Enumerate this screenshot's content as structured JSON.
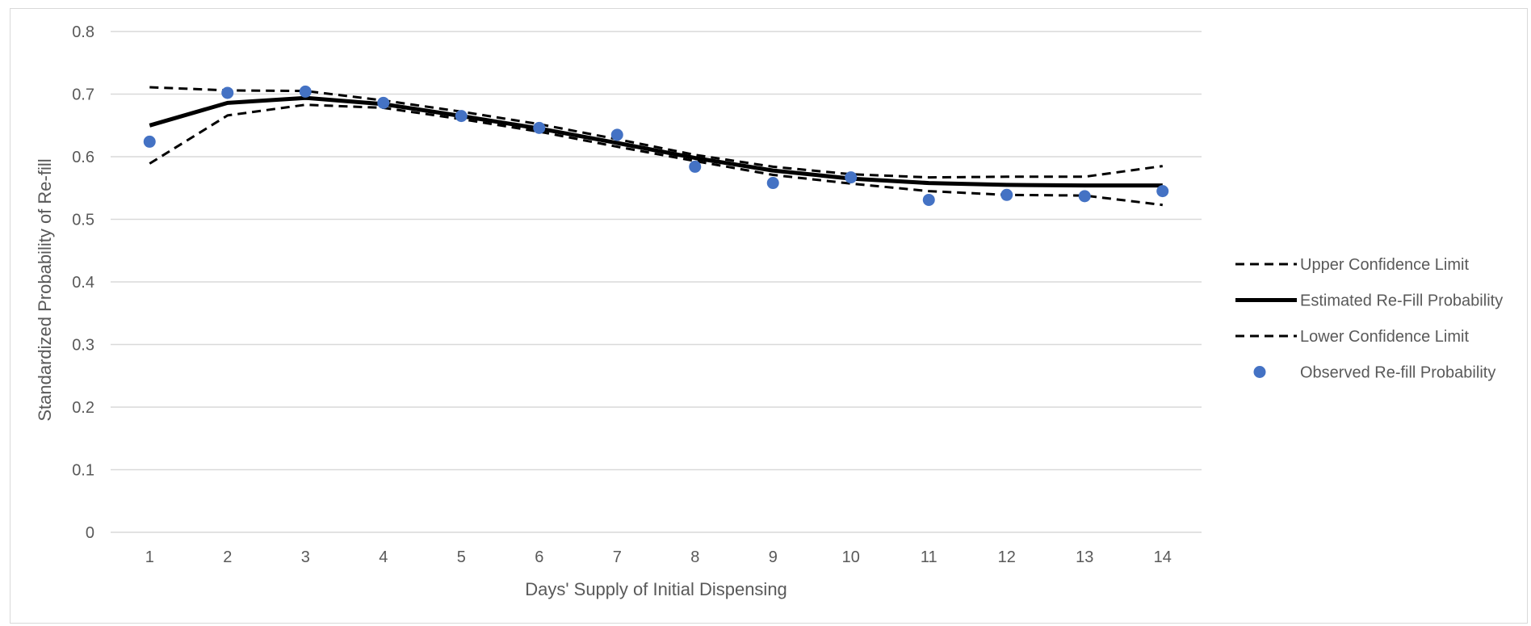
{
  "chart_data": {
    "type": "line",
    "title": "",
    "xlabel": "Days' Supply of Initial Dispensing",
    "ylabel": "Standardized Probability of Re-fill",
    "ylim": [
      0,
      0.8
    ],
    "grid": true,
    "legend_position": "right",
    "x": [
      1,
      2,
      3,
      4,
      5,
      6,
      7,
      8,
      9,
      10,
      11,
      12,
      13,
      14
    ],
    "x_tick_labels": [
      "1",
      "2",
      "3",
      "4",
      "5",
      "6",
      "7",
      "8",
      "9",
      "10",
      "11",
      "12",
      "13",
      "14"
    ],
    "y_tick_labels": [
      "0",
      "0.1",
      "0.2",
      "0.3",
      "0.4",
      "0.5",
      "0.6",
      "0.7",
      "0.8"
    ],
    "y_ticks": [
      0,
      0.1,
      0.2,
      0.3,
      0.4,
      0.5,
      0.6,
      0.7,
      0.8
    ],
    "series": [
      {
        "name": "Upper Confidence Limit",
        "style": "dashed",
        "color": "#000000",
        "values": [
          0.711,
          0.706,
          0.705,
          0.69,
          0.672,
          0.652,
          0.628,
          0.603,
          0.584,
          0.572,
          0.567,
          0.568,
          0.568,
          0.585
        ]
      },
      {
        "name": "Estimated Re-Fill Probability",
        "style": "solid",
        "color": "#000000",
        "values": [
          0.65,
          0.686,
          0.694,
          0.684,
          0.665,
          0.645,
          0.622,
          0.598,
          0.578,
          0.565,
          0.558,
          0.555,
          0.554,
          0.554
        ]
      },
      {
        "name": "Lower Confidence Limit",
        "style": "dashed",
        "color": "#000000",
        "values": [
          0.589,
          0.666,
          0.683,
          0.678,
          0.66,
          0.64,
          0.616,
          0.593,
          0.571,
          0.557,
          0.545,
          0.539,
          0.538,
          0.523
        ]
      },
      {
        "name": "Observed Re-fill Probability",
        "style": "marker",
        "color": "#4472c4",
        "values": [
          0.624,
          0.702,
          0.704,
          0.686,
          0.665,
          0.646,
          0.635,
          0.584,
          0.558,
          0.567,
          0.531,
          0.539,
          0.537,
          0.545
        ]
      }
    ]
  }
}
